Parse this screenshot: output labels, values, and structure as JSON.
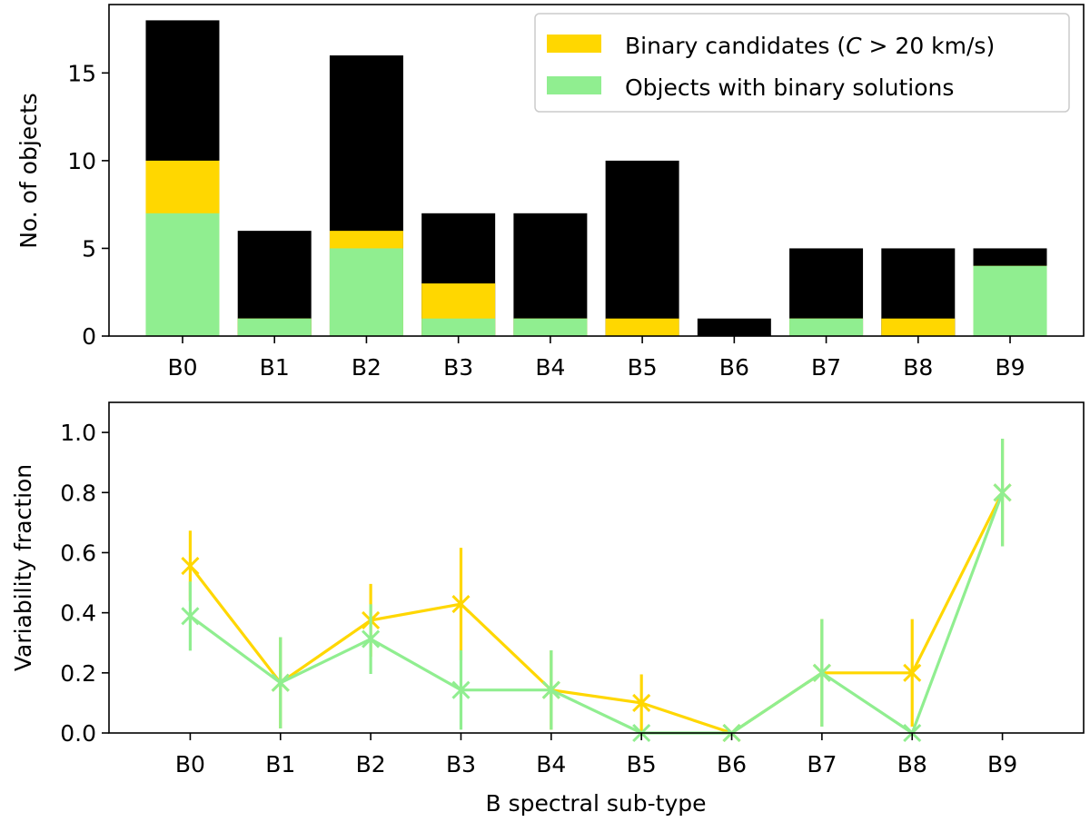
{
  "chart_data": [
    {
      "type": "bar",
      "categories": [
        "B0",
        "B1",
        "B2",
        "B3",
        "B4",
        "B5",
        "B6",
        "B7",
        "B8",
        "B9"
      ],
      "ylabel": "No. of objects",
      "xlabel": "",
      "ylim": [
        0,
        18.9
      ],
      "yticks": [
        0,
        5,
        10,
        15
      ],
      "stacked_overlay": true,
      "series": [
        {
          "key": "total",
          "color": "#000000",
          "values": [
            18,
            6,
            16,
            7,
            7,
            10,
            1,
            5,
            5,
            5
          ]
        },
        {
          "key": "cand",
          "name": "Binary candidates (C > 20 km/s)",
          "color": "#ffd700",
          "values": [
            10,
            1,
            6,
            3,
            1,
            1,
            0,
            1,
            1,
            4
          ]
        },
        {
          "key": "sol",
          "name": "Objects with binary solutions",
          "color": "#90ee90",
          "values": [
            7,
            1,
            5,
            1,
            1,
            0,
            0,
            1,
            0,
            4
          ]
        }
      ],
      "legend": {
        "position": "top-right",
        "items": [
          {
            "prefix": "Binary candidates (",
            "italic": "C",
            "suffix": " > 20 km/s)",
            "color": "#ffd700"
          },
          {
            "prefix": "Objects with binary solutions",
            "italic": "",
            "suffix": "",
            "color": "#90ee90"
          }
        ]
      }
    },
    {
      "type": "line",
      "categories": [
        "B0",
        "B1",
        "B2",
        "B3",
        "B4",
        "B5",
        "B6",
        "B7",
        "B8",
        "B9"
      ],
      "xlabel": "B spectral sub-type",
      "ylabel": "Variability fraction",
      "ylim": [
        0,
        1.1
      ],
      "yticks": [
        0.0,
        0.2,
        0.4,
        0.6,
        0.8,
        1.0
      ],
      "series": [
        {
          "key": "cand",
          "color": "#ffd700",
          "values": [
            0.556,
            0.167,
            0.375,
            0.429,
            0.143,
            0.1,
            0.0,
            0.2,
            0.2,
            0.8
          ],
          "err": [
            0.117,
            0.152,
            0.121,
            0.187,
            0.132,
            0.095,
            0.0,
            0.179,
            0.179,
            0.179
          ]
        },
        {
          "key": "sol",
          "color": "#90ee90",
          "values": [
            0.389,
            0.167,
            0.3125,
            0.143,
            0.143,
            0.0,
            0.0,
            0.2,
            0.0,
            0.8
          ],
          "err": [
            0.115,
            0.152,
            0.116,
            0.132,
            0.132,
            0.0,
            0.0,
            0.179,
            0.0,
            0.179
          ]
        }
      ]
    }
  ]
}
